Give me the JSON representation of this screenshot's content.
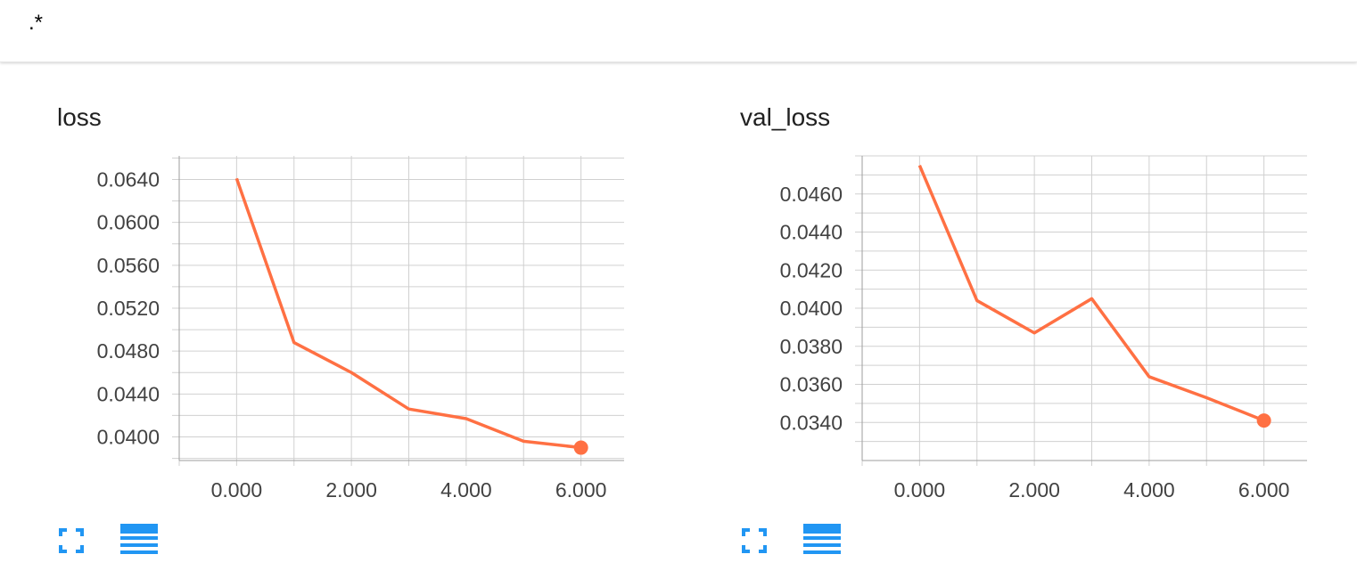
{
  "header": {
    "regex_filter": ".*"
  },
  "colors": {
    "series": "#ff7043",
    "grid": "#d0d0d0",
    "icon": "#2196f3"
  },
  "icons": {
    "expand": "fullscreen-icon",
    "toggle": "list-icon"
  },
  "chart_data": [
    {
      "type": "line",
      "title": "loss",
      "x": [
        0,
        1,
        2,
        3,
        4,
        5,
        6
      ],
      "series": [
        {
          "values": [
            0.0641,
            0.0488,
            0.046,
            0.0426,
            0.0417,
            0.0396,
            0.039
          ]
        }
      ],
      "xlim": [
        -1,
        7
      ],
      "ylim": [
        0.0378,
        0.0662
      ],
      "xticks": [
        0,
        2,
        4,
        6
      ],
      "xtick_labels": [
        "0.000",
        "2.000",
        "4.000",
        "6.000"
      ],
      "yticks": [
        0.04,
        0.044,
        0.048,
        0.052,
        0.056,
        0.06,
        0.064
      ],
      "ytick_labels": [
        "0.0400",
        "0.0440",
        "0.0480",
        "0.0520",
        "0.0560",
        "0.0600",
        "0.0640"
      ],
      "grid": true
    },
    {
      "type": "line",
      "title": "val_loss",
      "x": [
        0,
        1,
        2,
        3,
        4,
        5,
        6
      ],
      "series": [
        {
          "values": [
            0.0475,
            0.0404,
            0.0387,
            0.0405,
            0.0364,
            0.0353,
            0.0341
          ]
        }
      ],
      "xlim": [
        -1,
        7
      ],
      "ylim": [
        0.032,
        0.048
      ],
      "xticks": [
        0,
        2,
        4,
        6
      ],
      "xtick_labels": [
        "0.000",
        "2.000",
        "4.000",
        "6.000"
      ],
      "yticks": [
        0.034,
        0.036,
        0.038,
        0.04,
        0.042,
        0.044,
        0.046
      ],
      "ytick_labels": [
        "0.0340",
        "0.0360",
        "0.0380",
        "0.0400",
        "0.0420",
        "0.0440",
        "0.0460"
      ],
      "grid": true
    }
  ]
}
